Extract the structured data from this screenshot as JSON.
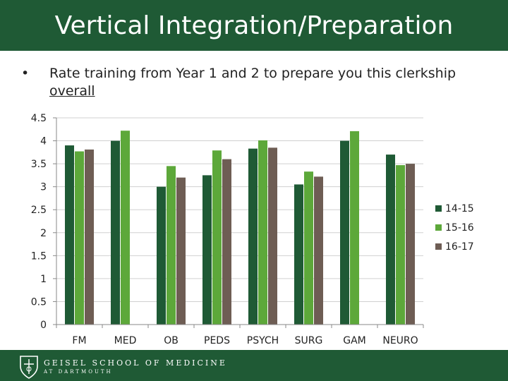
{
  "header": {
    "title": "Vertical Integration/Preparation"
  },
  "bullet": {
    "symbol": "•",
    "text_part1": "Rate training from Year 1 and 2 to prepare you this clerkship ",
    "text_part2": "overall"
  },
  "footer": {
    "line1": "GEISEL SCHOOL OF MEDICINE",
    "line2": "AT DARTMOUTH",
    "logo_icon": "shield-icon"
  },
  "colors": {
    "brand": "#1f5a35",
    "series_14_15": "#1f5a35",
    "series_15_16": "#5da83a",
    "series_16_17": "#6e5d54"
  },
  "chart_data": {
    "type": "bar",
    "title": "",
    "xlabel": "",
    "ylabel": "",
    "ylim": [
      0,
      4.5
    ],
    "yticks": [
      "4.5",
      "4",
      "3.5",
      "3",
      "2.5",
      "2",
      "1.5",
      "1",
      "0.5",
      "0"
    ],
    "grid": true,
    "legend_position": "right",
    "categories": [
      "FM",
      "MED",
      "OB",
      "PEDS",
      "PSYCH",
      "SURG",
      "GAM",
      "NEURO"
    ],
    "series": [
      {
        "name": "14-15",
        "color": "#1f5a35",
        "values": [
          3.9,
          4.0,
          3.0,
          3.25,
          3.83,
          3.05,
          4.0,
          3.7
        ]
      },
      {
        "name": "15-16",
        "color": "#5da83a",
        "values": [
          3.77,
          4.22,
          3.45,
          3.79,
          4.01,
          3.33,
          4.21,
          3.47
        ]
      },
      {
        "name": "16-17",
        "color": "#6e5d54",
        "values": [
          3.81,
          null,
          3.2,
          3.6,
          3.85,
          3.22,
          null,
          3.5
        ]
      }
    ]
  }
}
